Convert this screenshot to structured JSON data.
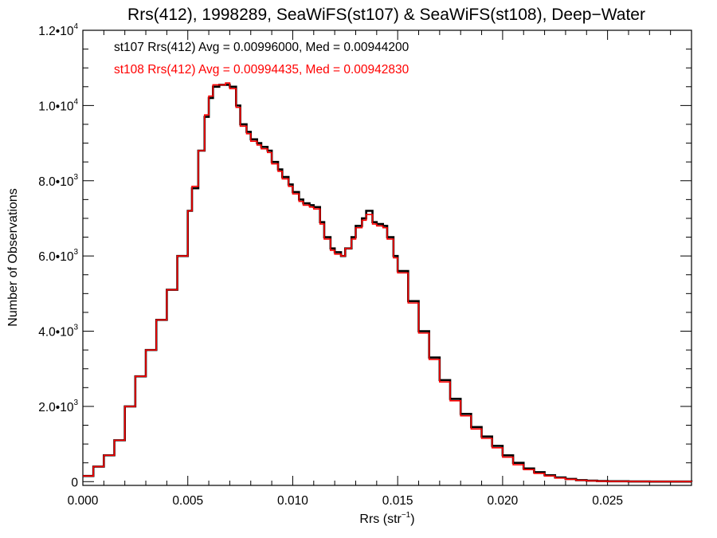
{
  "chart_data": {
    "type": "line",
    "title": "Rrs(412), 1998289, SeaWiFS(st107) & SeaWiFS(st108), Deep−Water",
    "xlabel": "Rrs (str",
    "xlabel_sup": "−1",
    "xlabel_end": ")",
    "ylabel": "Number of Observations",
    "xlim": [
      0.0,
      0.029
    ],
    "ylim": [
      -100,
      12000
    ],
    "x_ticks": [
      {
        "value": 0.0,
        "label": "0.000"
      },
      {
        "value": 0.005,
        "label": "0.005"
      },
      {
        "value": 0.01,
        "label": "0.010"
      },
      {
        "value": 0.015,
        "label": "0.015"
      },
      {
        "value": 0.02,
        "label": "0.020"
      },
      {
        "value": 0.025,
        "label": "0.025"
      }
    ],
    "y_ticks": [
      {
        "value": 0,
        "mant": "0",
        "exp": ""
      },
      {
        "value": 2000,
        "mant": "2.0•10",
        "exp": "3"
      },
      {
        "value": 4000,
        "mant": "4.0•10",
        "exp": "3"
      },
      {
        "value": 6000,
        "mant": "6.0•10",
        "exp": "3"
      },
      {
        "value": 8000,
        "mant": "8.0•10",
        "exp": "3"
      },
      {
        "value": 10000,
        "mant": "1.0•10",
        "exp": "4"
      },
      {
        "value": 12000,
        "mant": "1.2•10",
        "exp": "4"
      }
    ],
    "legend": [
      {
        "text": "st107 Rrs(412) Avg = 0.00996000, Med = 0.00944200",
        "color": "#000000"
      },
      {
        "text": "st108 Rrs(412) Avg = 0.00994435, Med = 0.00942830",
        "color": "#ff0000"
      }
    ],
    "grid": false,
    "series": [
      {
        "color": "#000000",
        "x": [
          0.0,
          0.0005,
          0.001,
          0.0015,
          0.002,
          0.0025,
          0.003,
          0.0035,
          0.004,
          0.0045,
          0.005,
          0.0052,
          0.0055,
          0.0058,
          0.006,
          0.0062,
          0.0065,
          0.0068,
          0.007,
          0.0073,
          0.0075,
          0.0078,
          0.008,
          0.0083,
          0.0085,
          0.0088,
          0.009,
          0.0093,
          0.0095,
          0.0098,
          0.01,
          0.0103,
          0.0105,
          0.0108,
          0.011,
          0.0113,
          0.0115,
          0.0118,
          0.012,
          0.0123,
          0.0125,
          0.0128,
          0.013,
          0.0133,
          0.0135,
          0.0138,
          0.014,
          0.0143,
          0.0145,
          0.0148,
          0.015,
          0.0155,
          0.016,
          0.0165,
          0.017,
          0.0175,
          0.018,
          0.0185,
          0.019,
          0.0195,
          0.02,
          0.0205,
          0.021,
          0.0215,
          0.022,
          0.0225,
          0.023,
          0.0235,
          0.024,
          0.0245,
          0.025,
          0.026,
          0.027,
          0.028,
          0.029
        ],
        "y": [
          150,
          400,
          700,
          1100,
          2000,
          2800,
          3500,
          4300,
          5100,
          6000,
          7200,
          7800,
          8800,
          9700,
          10200,
          10500,
          10550,
          10550,
          10500,
          10000,
          9500,
          9300,
          9100,
          9000,
          8900,
          8800,
          8500,
          8300,
          8100,
          7900,
          7700,
          7500,
          7400,
          7350,
          7300,
          6900,
          6500,
          6200,
          6100,
          6000,
          6200,
          6500,
          6800,
          7000,
          7200,
          6900,
          6850,
          6800,
          6500,
          6000,
          5600,
          4800,
          4000,
          3300,
          2700,
          2200,
          1800,
          1450,
          1200,
          950,
          700,
          500,
          350,
          250,
          170,
          110,
          70,
          40,
          25,
          15,
          10,
          5,
          2,
          1,
          0
        ]
      },
      {
        "color": "#ff0000",
        "x": [
          0.0,
          0.0005,
          0.001,
          0.0015,
          0.002,
          0.0025,
          0.003,
          0.0035,
          0.004,
          0.0045,
          0.005,
          0.0052,
          0.0055,
          0.0058,
          0.006,
          0.0062,
          0.0065,
          0.0068,
          0.007,
          0.0073,
          0.0075,
          0.0078,
          0.008,
          0.0083,
          0.0085,
          0.0088,
          0.009,
          0.0093,
          0.0095,
          0.0098,
          0.01,
          0.0103,
          0.0105,
          0.0108,
          0.011,
          0.0113,
          0.0115,
          0.0118,
          0.012,
          0.0123,
          0.0125,
          0.0128,
          0.013,
          0.0133,
          0.0135,
          0.0138,
          0.014,
          0.0143,
          0.0145,
          0.0148,
          0.015,
          0.0155,
          0.016,
          0.0165,
          0.017,
          0.0175,
          0.018,
          0.0185,
          0.019,
          0.0195,
          0.02,
          0.0205,
          0.021,
          0.0215,
          0.022,
          0.0225,
          0.023,
          0.0235,
          0.024,
          0.0245,
          0.025,
          0.026,
          0.027,
          0.028,
          0.029
        ],
        "y": [
          150,
          400,
          700,
          1100,
          2000,
          2800,
          3500,
          4300,
          5100,
          6000,
          7200,
          7850,
          8800,
          9750,
          10250,
          10550,
          10550,
          10600,
          10450,
          9950,
          9450,
          9250,
          9050,
          8950,
          8850,
          8750,
          8450,
          8250,
          8050,
          7850,
          7650,
          7450,
          7350,
          7300,
          7250,
          6850,
          6450,
          6150,
          6050,
          6000,
          6200,
          6450,
          6750,
          6950,
          7100,
          6850,
          6800,
          6750,
          6450,
          5950,
          5550,
          4750,
          3950,
          3250,
          2650,
          2150,
          1750,
          1400,
          1150,
          900,
          650,
          450,
          320,
          220,
          150,
          95,
          60,
          35,
          20,
          12,
          8,
          4,
          2,
          1,
          0
        ]
      }
    ]
  }
}
